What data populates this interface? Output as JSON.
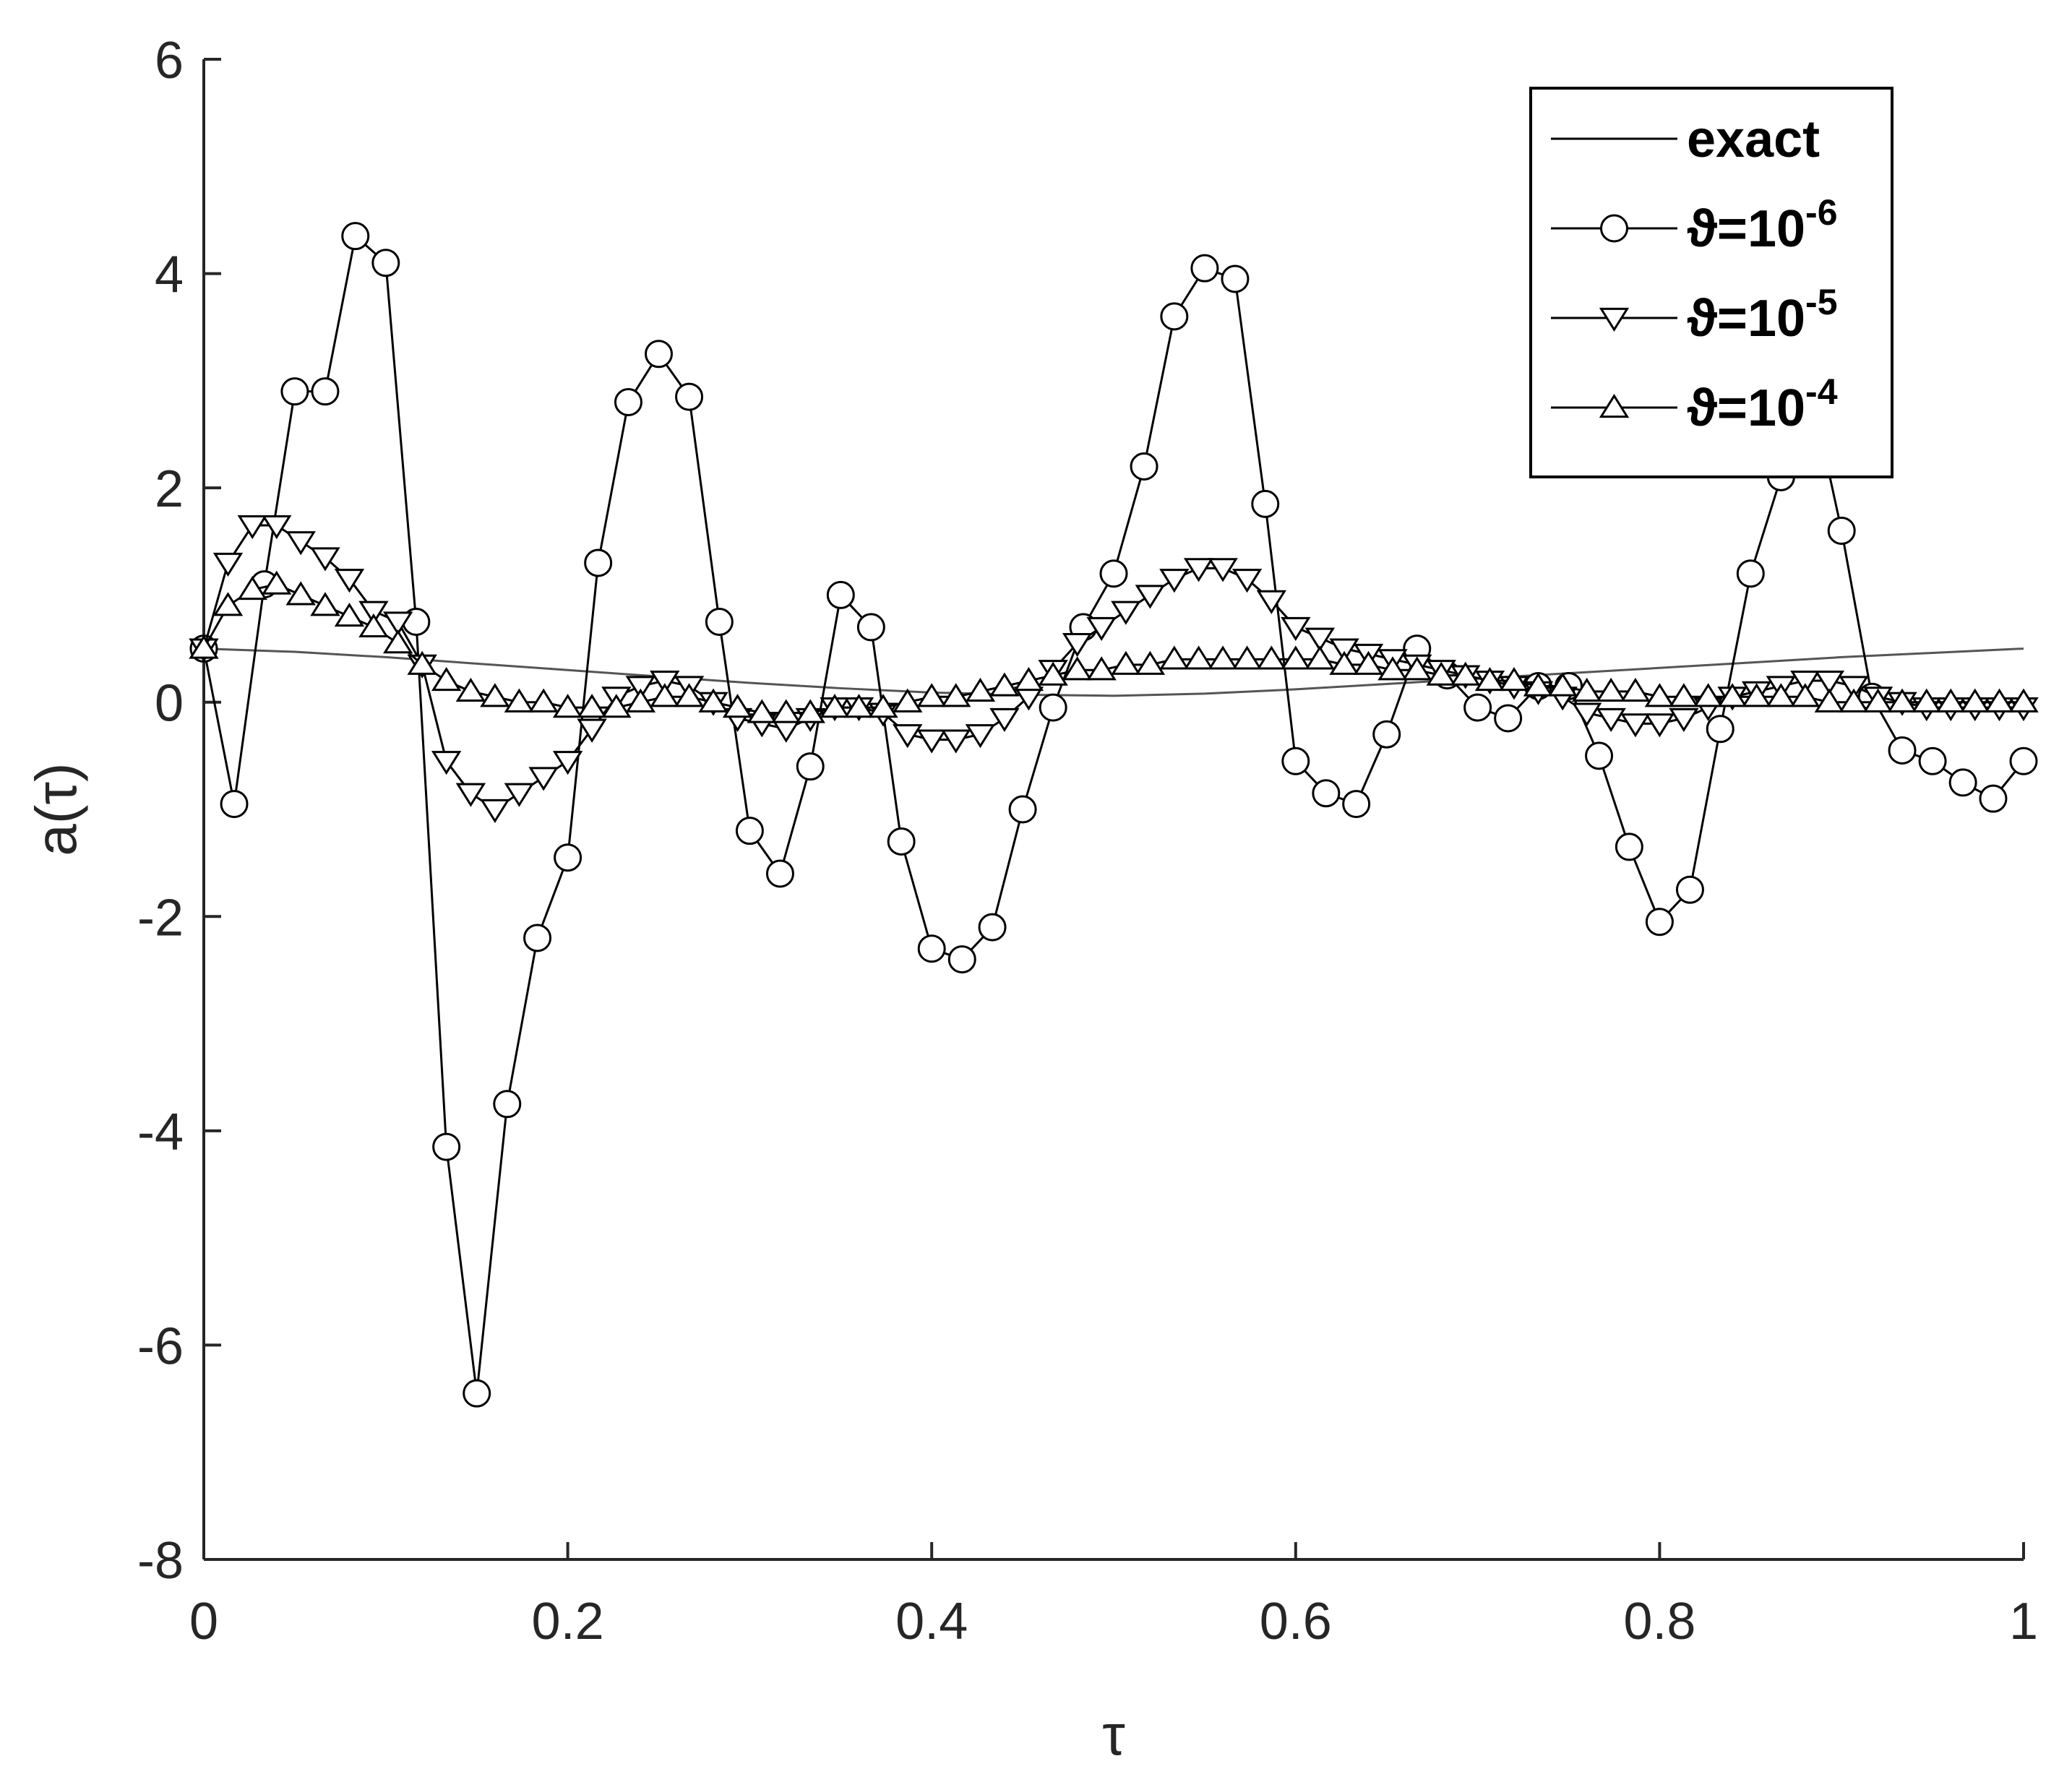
{
  "chart_data": {
    "type": "line",
    "xlabel": "τ",
    "ylabel": "a(τ)",
    "xlim": [
      0,
      1
    ],
    "ylim": [
      -8,
      6
    ],
    "xticks": [
      "0",
      "0.2",
      "0.4",
      "0.6",
      "0.8",
      "1"
    ],
    "yticks": [
      "6",
      "4",
      "2",
      "0",
      "-2",
      "-4",
      "-6",
      "-8"
    ],
    "grid": false,
    "legend_position": "top-right",
    "colors": {
      "line": "#000000",
      "axis": "#262626",
      "exact": "#555555"
    },
    "exact": {
      "name": "exact",
      "x": [
        0,
        0.05,
        0.1,
        0.15,
        0.2,
        0.25,
        0.3,
        0.35,
        0.4,
        0.45,
        0.5,
        0.55,
        0.6,
        0.65,
        0.7,
        0.75,
        0.8,
        0.85,
        0.9,
        0.95,
        1.0
      ],
      "y": [
        0.5,
        0.47,
        0.42,
        0.36,
        0.3,
        0.24,
        0.18,
        0.13,
        0.09,
        0.07,
        0.06,
        0.08,
        0.12,
        0.17,
        0.22,
        0.27,
        0.32,
        0.37,
        0.42,
        0.46,
        0.5
      ]
    },
    "series": [
      {
        "name_prefix": "ϑ=10",
        "name_exp": "-6",
        "marker": "circle",
        "x": [
          0,
          0.0167,
          0.0333,
          0.05,
          0.0667,
          0.0833,
          0.1,
          0.1167,
          0.1333,
          0.15,
          0.1667,
          0.1833,
          0.2,
          0.2167,
          0.2333,
          0.25,
          0.2667,
          0.2833,
          0.3,
          0.3167,
          0.3333,
          0.35,
          0.3667,
          0.3833,
          0.4,
          0.4167,
          0.4333,
          0.45,
          0.4667,
          0.4833,
          0.5,
          0.5167,
          0.5333,
          0.55,
          0.5667,
          0.5833,
          0.6,
          0.6167,
          0.6333,
          0.65,
          0.6667,
          0.6833,
          0.7,
          0.7167,
          0.7333,
          0.75,
          0.7667,
          0.7833,
          0.8,
          0.8167,
          0.8333,
          0.85,
          0.8667,
          0.8833,
          0.9,
          0.9167,
          0.9333,
          0.95,
          0.9667,
          0.9833,
          1.0
        ],
        "y": [
          0.5,
          -0.95,
          1.1,
          2.9,
          2.9,
          4.35,
          4.1,
          0.75,
          -4.15,
          -6.45,
          -3.75,
          -2.2,
          -1.45,
          1.3,
          2.8,
          3.25,
          2.85,
          0.75,
          -1.2,
          -1.6,
          -0.6,
          1.0,
          0.7,
          -1.3,
          -2.3,
          -2.4,
          -2.1,
          -1.0,
          -0.05,
          0.7,
          1.2,
          2.2,
          3.6,
          4.05,
          3.95,
          1.85,
          -0.55,
          -0.85,
          -0.95,
          -0.3,
          0.5,
          0.25,
          -0.05,
          -0.15,
          0.15,
          0.15,
          -0.5,
          -1.35,
          -2.05,
          -1.75,
          -0.25,
          1.2,
          2.1,
          2.9,
          1.6,
          0.05,
          -0.45,
          -0.55,
          -0.75,
          -0.9,
          -0.55
        ]
      },
      {
        "name_prefix": "ϑ=10",
        "name_exp": "-5",
        "marker": "triangle-down",
        "x": [
          0,
          0.0133,
          0.0267,
          0.04,
          0.0533,
          0.0667,
          0.08,
          0.0933,
          0.1067,
          0.12,
          0.1333,
          0.1467,
          0.16,
          0.1733,
          0.1867,
          0.2,
          0.2133,
          0.2267,
          0.24,
          0.2533,
          0.2667,
          0.28,
          0.2933,
          0.3067,
          0.32,
          0.3333,
          0.3467,
          0.36,
          0.3733,
          0.3867,
          0.4,
          0.4133,
          0.4267,
          0.44,
          0.4533,
          0.4667,
          0.48,
          0.4933,
          0.5067,
          0.52,
          0.5333,
          0.5467,
          0.56,
          0.5733,
          0.5867,
          0.6,
          0.6133,
          0.6267,
          0.64,
          0.6533,
          0.6667,
          0.68,
          0.6933,
          0.7067,
          0.72,
          0.7333,
          0.7467,
          0.76,
          0.7733,
          0.7867,
          0.8,
          0.8133,
          0.8267,
          0.84,
          0.8533,
          0.8667,
          0.88,
          0.8933,
          0.9067,
          0.92,
          0.9333,
          0.9467,
          0.96,
          0.9733,
          0.9867,
          1.0
        ],
        "y": [
          0.5,
          1.3,
          1.65,
          1.65,
          1.5,
          1.35,
          1.15,
          0.85,
          0.75,
          0.35,
          -0.55,
          -0.85,
          -1.0,
          -0.85,
          -0.7,
          -0.55,
          -0.25,
          0.05,
          0.15,
          0.2,
          0.15,
          0.0,
          -0.15,
          -0.2,
          -0.25,
          -0.15,
          -0.05,
          -0.05,
          -0.1,
          -0.3,
          -0.35,
          -0.35,
          -0.3,
          -0.15,
          0.05,
          0.3,
          0.55,
          0.7,
          0.85,
          1.0,
          1.15,
          1.25,
          1.25,
          1.15,
          0.95,
          0.7,
          0.6,
          0.5,
          0.45,
          0.4,
          0.35,
          0.3,
          0.25,
          0.2,
          0.15,
          0.1,
          0.05,
          -0.1,
          -0.15,
          -0.2,
          -0.2,
          -0.15,
          -0.05,
          0.05,
          0.1,
          0.15,
          0.2,
          0.2,
          0.15,
          0.05,
          0.0,
          -0.05,
          -0.05,
          -0.05,
          -0.05,
          -0.05
        ]
      },
      {
        "name_prefix": "ϑ=10",
        "name_exp": "-4",
        "marker": "triangle-up",
        "x": [
          0,
          0.0133,
          0.0267,
          0.04,
          0.0533,
          0.0667,
          0.08,
          0.0933,
          0.1067,
          0.12,
          0.1333,
          0.1467,
          0.16,
          0.1733,
          0.1867,
          0.2,
          0.2133,
          0.2267,
          0.24,
          0.2533,
          0.2667,
          0.28,
          0.2933,
          0.3067,
          0.32,
          0.3333,
          0.3467,
          0.36,
          0.3733,
          0.3867,
          0.4,
          0.4133,
          0.4267,
          0.44,
          0.4533,
          0.4667,
          0.48,
          0.4933,
          0.5067,
          0.52,
          0.5333,
          0.5467,
          0.56,
          0.5733,
          0.5867,
          0.6,
          0.6133,
          0.6267,
          0.64,
          0.6533,
          0.6667,
          0.68,
          0.6933,
          0.7067,
          0.72,
          0.7333,
          0.7467,
          0.76,
          0.7733,
          0.7867,
          0.8,
          0.8133,
          0.8267,
          0.84,
          0.8533,
          0.8667,
          0.88,
          0.8933,
          0.9067,
          0.92,
          0.9333,
          0.9467,
          0.96,
          0.9733,
          0.9867,
          1.0
        ],
        "y": [
          0.5,
          0.9,
          1.05,
          1.1,
          1.0,
          0.9,
          0.8,
          0.7,
          0.55,
          0.35,
          0.2,
          0.1,
          0.05,
          0.0,
          0.0,
          -0.05,
          -0.05,
          -0.05,
          0.0,
          0.05,
          0.05,
          0.0,
          -0.05,
          -0.1,
          -0.1,
          -0.1,
          -0.05,
          -0.05,
          -0.05,
          0.0,
          0.05,
          0.05,
          0.1,
          0.15,
          0.2,
          0.25,
          0.3,
          0.3,
          0.35,
          0.35,
          0.4,
          0.4,
          0.4,
          0.4,
          0.4,
          0.4,
          0.4,
          0.35,
          0.35,
          0.3,
          0.3,
          0.25,
          0.25,
          0.2,
          0.2,
          0.15,
          0.15,
          0.1,
          0.1,
          0.1,
          0.05,
          0.05,
          0.05,
          0.05,
          0.05,
          0.05,
          0.05,
          0.0,
          0.0,
          0.0,
          0.0,
          0.0,
          0.0,
          0.0,
          0.0,
          0.0
        ]
      }
    ]
  }
}
